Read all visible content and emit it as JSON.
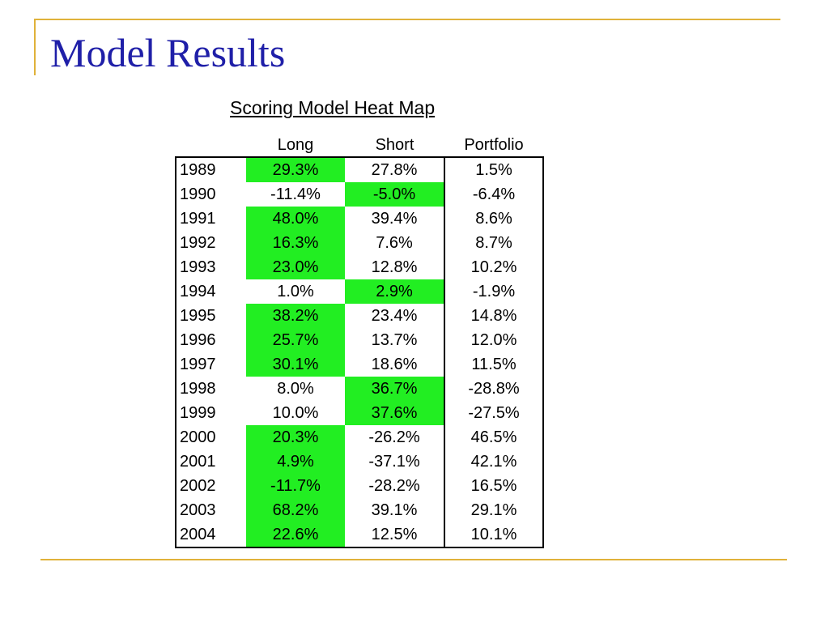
{
  "slide": {
    "title": "Model Results"
  },
  "heat_map": {
    "title": "Scoring Model Heat Map",
    "highlight_color": "#22ee22",
    "columns": {
      "year": "",
      "long": "Long",
      "short": "Short",
      "portfolio": "Portfolio"
    },
    "rows": [
      {
        "year": "1989",
        "long": "29.3%",
        "short": "27.8%",
        "portfolio": "1.5%",
        "highlight": "long"
      },
      {
        "year": "1990",
        "long": "-11.4%",
        "short": "-5.0%",
        "portfolio": "-6.4%",
        "highlight": "short"
      },
      {
        "year": "1991",
        "long": "48.0%",
        "short": "39.4%",
        "portfolio": "8.6%",
        "highlight": "long"
      },
      {
        "year": "1992",
        "long": "16.3%",
        "short": "7.6%",
        "portfolio": "8.7%",
        "highlight": "long"
      },
      {
        "year": "1993",
        "long": "23.0%",
        "short": "12.8%",
        "portfolio": "10.2%",
        "highlight": "long"
      },
      {
        "year": "1994",
        "long": "1.0%",
        "short": "2.9%",
        "portfolio": "-1.9%",
        "highlight": "short"
      },
      {
        "year": "1995",
        "long": "38.2%",
        "short": "23.4%",
        "portfolio": "14.8%",
        "highlight": "long"
      },
      {
        "year": "1996",
        "long": "25.7%",
        "short": "13.7%",
        "portfolio": "12.0%",
        "highlight": "long"
      },
      {
        "year": "1997",
        "long": "30.1%",
        "short": "18.6%",
        "portfolio": "11.5%",
        "highlight": "long"
      },
      {
        "year": "1998",
        "long": "8.0%",
        "short": "36.7%",
        "portfolio": "-28.8%",
        "highlight": "short"
      },
      {
        "year": "1999",
        "long": "10.0%",
        "short": "37.6%",
        "portfolio": "-27.5%",
        "highlight": "short"
      },
      {
        "year": "2000",
        "long": "20.3%",
        "short": "-26.2%",
        "portfolio": "46.5%",
        "highlight": "long"
      },
      {
        "year": "2001",
        "long": "4.9%",
        "short": "-37.1%",
        "portfolio": "42.1%",
        "highlight": "long"
      },
      {
        "year": "2002",
        "long": "-11.7%",
        "short": "-28.2%",
        "portfolio": "16.5%",
        "highlight": "long"
      },
      {
        "year": "2003",
        "long": "68.2%",
        "short": "39.1%",
        "portfolio": "29.1%",
        "highlight": "long"
      },
      {
        "year": "2004",
        "long": "22.6%",
        "short": "12.5%",
        "portfolio": "10.1%",
        "highlight": "long"
      }
    ]
  }
}
